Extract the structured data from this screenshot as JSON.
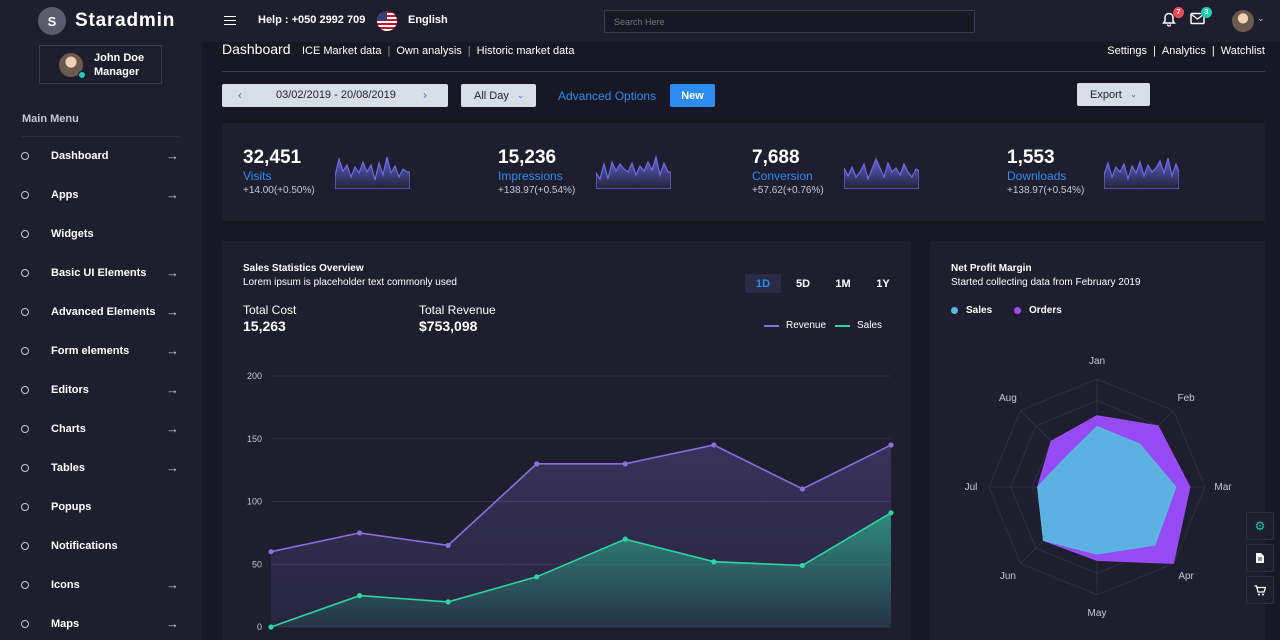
{
  "brand": {
    "letter": "S",
    "name": "Staradmin"
  },
  "profile": {
    "name": "John Doe",
    "role": "Manager"
  },
  "sidebar": {
    "title": "Main Menu",
    "items": [
      {
        "label": "Dashboard",
        "arrow": "→"
      },
      {
        "label": "Apps",
        "arrow": "→"
      },
      {
        "label": "Widgets",
        "arrow": ""
      },
      {
        "label": "Basic UI Elements",
        "arrow": "→"
      },
      {
        "label": "Advanced Elements",
        "arrow": "→"
      },
      {
        "label": "Form elements",
        "arrow": "→"
      },
      {
        "label": "Editors",
        "arrow": "→"
      },
      {
        "label": "Charts",
        "arrow": "→"
      },
      {
        "label": "Tables",
        "arrow": "→"
      },
      {
        "label": "Popups",
        "arrow": ""
      },
      {
        "label": "Notifications",
        "arrow": ""
      },
      {
        "label": "Icons",
        "arrow": "→"
      },
      {
        "label": "Maps",
        "arrow": "→"
      }
    ]
  },
  "topbar": {
    "help": "Help : +050 2992 709",
    "language": "English",
    "search_placeholder": "Search Here",
    "notifications_count": "7",
    "messages_count": "3",
    "notification_color": "#fe4a55",
    "message_color": "#1bcfb4"
  },
  "header": {
    "title": "Dashboard",
    "links": [
      "ICE Market data",
      "Own analysis",
      "Historic market data"
    ],
    "right_links": [
      "Settings",
      "Analytics",
      "Watchlist"
    ],
    "separator": "|"
  },
  "toolbar": {
    "date_range": "03/02/2019 - 20/08/2019",
    "prev": "‹",
    "next": "›",
    "period": "All Day",
    "advanced": "Advanced Options",
    "new": "New",
    "export": "Export"
  },
  "stats": [
    {
      "value": "32,451",
      "label": "Visits",
      "delta": "+14.00(+0.50%)"
    },
    {
      "value": "15,236",
      "label": "Impressions",
      "delta": "+138.97(+0.54%)"
    },
    {
      "value": "7,688",
      "label": "Conversion",
      "delta": "+57.62(+0.76%)"
    },
    {
      "value": "1,553",
      "label": "Downloads",
      "delta": "+138.97(+0.54%)"
    }
  ],
  "sales": {
    "title": "Sales Statistics Overview",
    "subtitle": "Lorem ipsum is placeholder text commonly used",
    "ranges": [
      "1D",
      "5D",
      "1M",
      "1Y"
    ],
    "active_range": "1D",
    "total_cost_label": "Total Cost",
    "total_cost": "15,263",
    "total_revenue_label": "Total Revenue",
    "total_revenue": "$753,098",
    "revenue_color": "#8a6fdf",
    "sales_color": "#2cd6a0"
  },
  "profit": {
    "title": "Net Profit Margin",
    "subtitle": "Started collecting data from February 2019",
    "sales_color": "#55bde0",
    "orders_color": "#9d4dff"
  },
  "chart_data": [
    {
      "type": "area",
      "title": "Sales Statistics Overview",
      "x": [
        0,
        1,
        2,
        3,
        4,
        5,
        6,
        7
      ],
      "ylim": [
        0,
        200
      ],
      "yticks": [
        0,
        50,
        100,
        150,
        200
      ],
      "series": [
        {
          "name": "Revenue",
          "values": [
            60,
            75,
            65,
            130,
            130,
            145,
            110,
            145
          ]
        },
        {
          "name": "Sales",
          "values": [
            0,
            25,
            20,
            40,
            70,
            52,
            49,
            91
          ]
        }
      ],
      "legend": "top-right"
    },
    {
      "type": "radar",
      "title": "Net Profit Margin",
      "categories": [
        "Jan",
        "Feb",
        "Mar",
        "Apr",
        "May",
        "Jun",
        "Jul",
        "Aug"
      ],
      "rmax": 100,
      "series": [
        {
          "name": "Sales",
          "values": [
            56,
            56,
            73,
            76,
            62,
            70,
            55,
            40
          ]
        },
        {
          "name": "Orders",
          "values": [
            66,
            80,
            86,
            100,
            68,
            70,
            55,
            60
          ]
        }
      ],
      "legend": "top-left"
    }
  ]
}
